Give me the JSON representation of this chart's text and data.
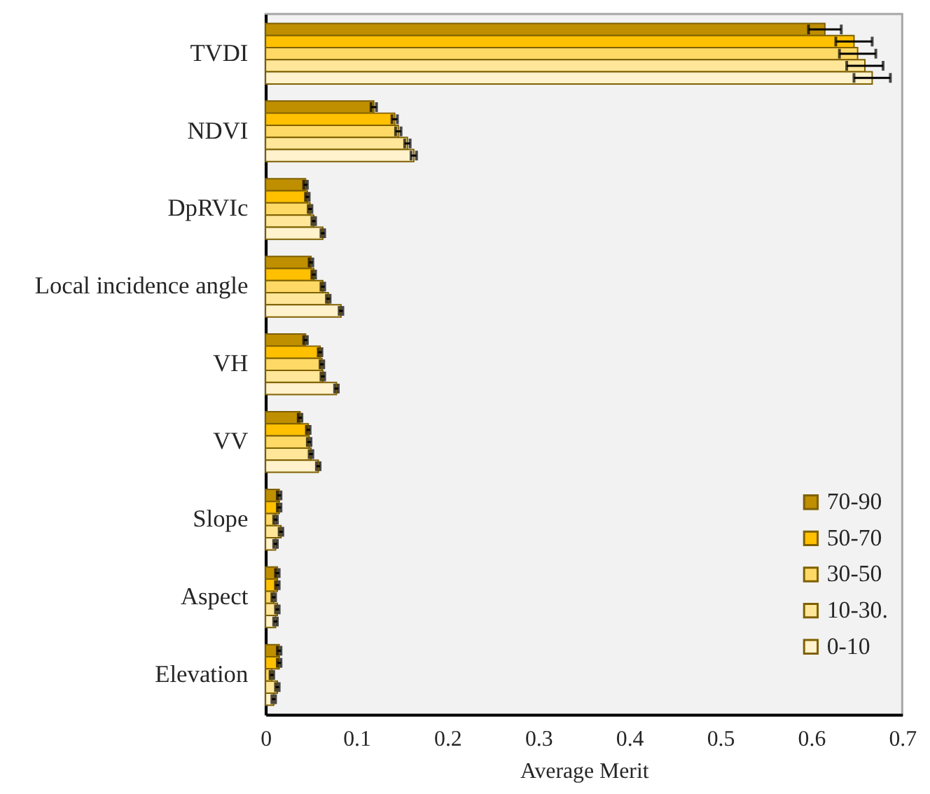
{
  "chart_data": {
    "type": "bar",
    "orientation": "horizontal",
    "categories": [
      "TVDI",
      "NDVI",
      "DpRVIc",
      "Local incidence angle",
      "VH",
      "VV",
      "Slope",
      "Aspect",
      "Elevation"
    ],
    "series": [
      {
        "name": "70-90",
        "color": "#bf8f00",
        "values": [
          0.615,
          0.119,
          0.044,
          0.05,
          0.044,
          0.038,
          0.015,
          0.013,
          0.015
        ],
        "errors": [
          0.018,
          0.003,
          0.002,
          0.002,
          0.002,
          0.002,
          0.002,
          0.002,
          0.002
        ]
      },
      {
        "name": "50-70",
        "color": "#ffc000",
        "values": [
          0.647,
          0.142,
          0.046,
          0.053,
          0.06,
          0.047,
          0.015,
          0.013,
          0.015
        ],
        "errors": [
          0.02,
          0.003,
          0.002,
          0.002,
          0.002,
          0.002,
          0.002,
          0.002,
          0.002
        ]
      },
      {
        "name": "30-50",
        "color": "#ffd966",
        "values": [
          0.651,
          0.146,
          0.049,
          0.063,
          0.062,
          0.048,
          0.011,
          0.009,
          0.007
        ],
        "errors": [
          0.02,
          0.003,
          0.002,
          0.002,
          0.002,
          0.002,
          0.002,
          0.002,
          0.002
        ]
      },
      {
        "name": "10-30.",
        "color": "#ffe699",
        "values": [
          0.659,
          0.156,
          0.053,
          0.069,
          0.063,
          0.05,
          0.017,
          0.013,
          0.013
        ],
        "errors": [
          0.02,
          0.003,
          0.002,
          0.002,
          0.002,
          0.002,
          0.002,
          0.002,
          0.002
        ]
      },
      {
        "name": "0-10",
        "color": "#fff2cc",
        "values": [
          0.667,
          0.163,
          0.063,
          0.083,
          0.078,
          0.058,
          0.011,
          0.011,
          0.009
        ],
        "errors": [
          0.02,
          0.003,
          0.002,
          0.002,
          0.002,
          0.002,
          0.002,
          0.002,
          0.002
        ]
      }
    ],
    "xlabel": "Average Merit",
    "xlim": [
      0,
      0.7
    ],
    "xticks": [
      0,
      0.1,
      0.2,
      0.3,
      0.4,
      0.5,
      0.6,
      0.7
    ],
    "grid": false,
    "legend": "bottom right"
  }
}
